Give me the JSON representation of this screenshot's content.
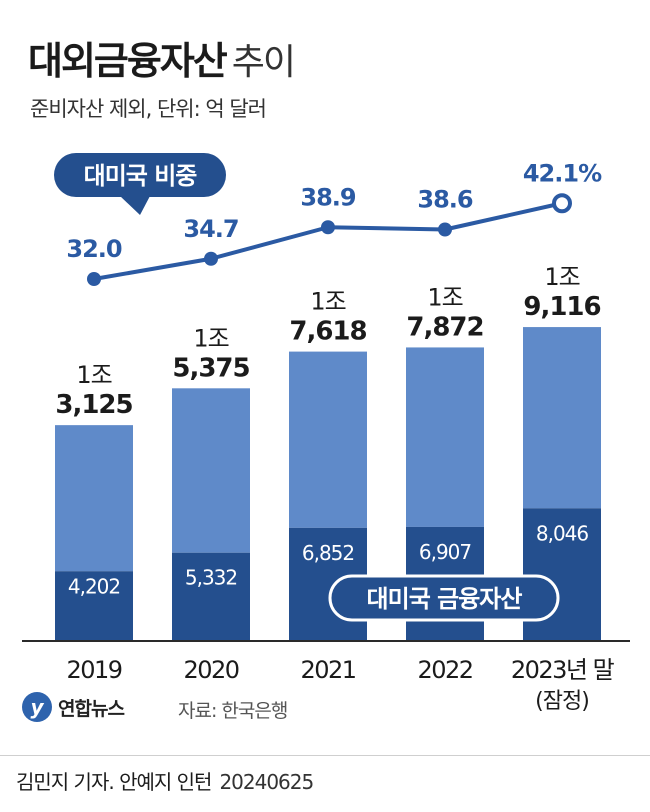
{
  "header": {
    "title_main": "대외금융자산",
    "title_sub": "추이",
    "subtitle": "준비자산 제외, 단위: 억 달러"
  },
  "chart_data": {
    "type": "bar",
    "categories": [
      "2019",
      "2020",
      "2021",
      "2022",
      "2023년 말"
    ],
    "category_notes": [
      "",
      "",
      "",
      "",
      "(잠정)"
    ],
    "series": [
      {
        "name": "대미국 금융자산",
        "values": [
          4202,
          5332,
          6852,
          6907,
          8046
        ],
        "labels": [
          "4,202",
          "5,332",
          "6,852",
          "6,907",
          "8,046"
        ],
        "color": "#244f8e"
      },
      {
        "name": "",
        "values": [
          8923,
          10043,
          10766,
          10965,
          11070
        ],
        "color": "#5f8ac9"
      }
    ],
    "totals": {
      "values": [
        13125,
        15375,
        17618,
        17872,
        19116
      ],
      "label_top": [
        "1조",
        "1조",
        "1조",
        "1조",
        "1조"
      ],
      "label_bottom": [
        "3,125",
        "5,375",
        "7,618",
        "7,872",
        "9,116"
      ]
    },
    "line": {
      "name": "대미국 비중",
      "values": [
        32.0,
        34.7,
        38.9,
        38.6,
        42.1
      ],
      "labels": [
        "32.0",
        "34.7",
        "38.9",
        "38.6",
        "42.1%"
      ],
      "color": "#2b5aa3"
    },
    "ylim": [
      0,
      20000
    ]
  },
  "source": "자료: 한국은행",
  "logo": {
    "mark": "y",
    "name": "연합뉴스"
  },
  "credit": {
    "reporters": "김민지 기자. 안예지 인턴",
    "date": "20240625"
  }
}
